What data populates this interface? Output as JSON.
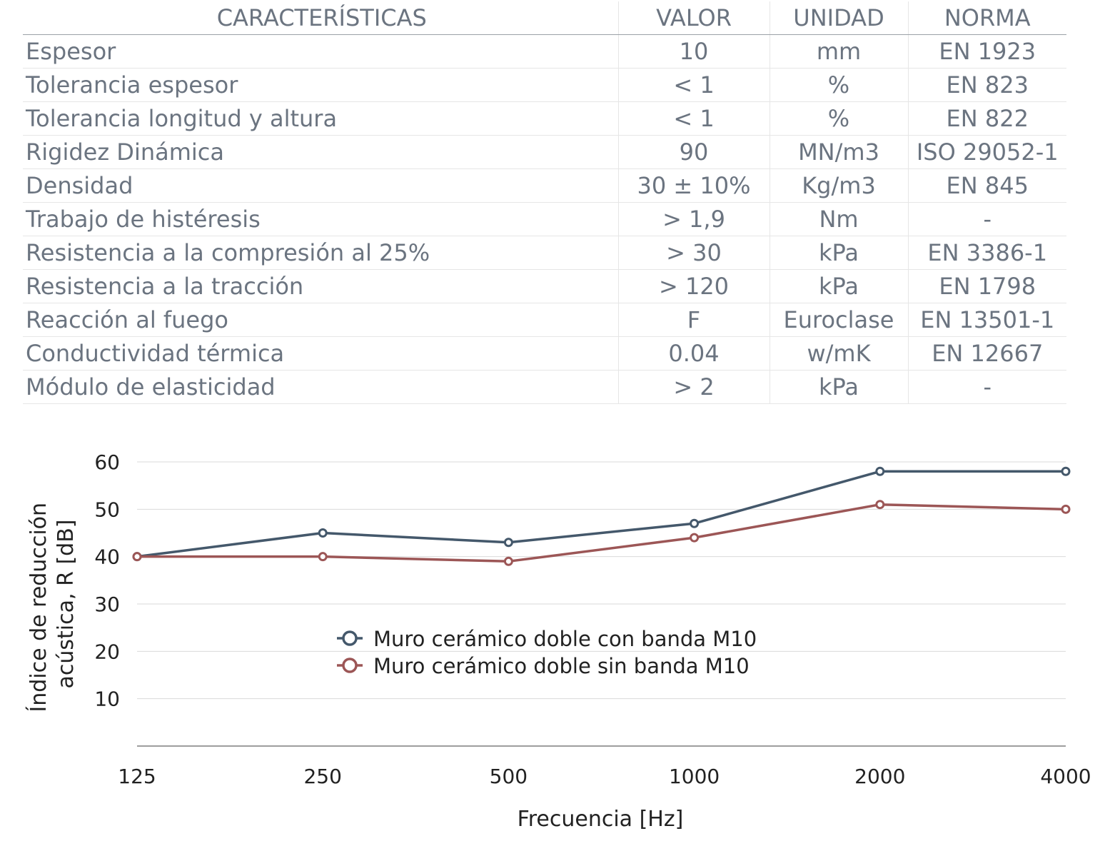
{
  "table": {
    "headers": [
      "CARACTERÍSTICAS",
      "VALOR",
      "UNIDAD",
      "NORMA"
    ],
    "rows": [
      [
        "Espesor",
        "10",
        "mm",
        "EN 1923"
      ],
      [
        "Tolerancia espesor",
        "< 1",
        "%",
        "EN 823"
      ],
      [
        "Tolerancia longitud y altura",
        "< 1",
        "%",
        "EN 822"
      ],
      [
        "Rigidez Dinámica",
        "90",
        "MN/m3",
        "ISO 29052-1"
      ],
      [
        "Densidad",
        "30 ± 10%",
        "Kg/m3",
        "EN 845"
      ],
      [
        "Trabajo de histéresis",
        "> 1,9",
        "Nm",
        "-"
      ],
      [
        "Resistencia a la compresión al 25%",
        "> 30",
        "kPa",
        "EN 3386-1"
      ],
      [
        "Resistencia a la tracción",
        "> 120",
        "kPa",
        "EN 1798"
      ],
      [
        "Reacción al fuego",
        "F",
        "Euroclase",
        "EN 13501-1"
      ],
      [
        "Conductividad térmica",
        "0.04",
        "w/mK",
        "EN 12667"
      ],
      [
        "Módulo de elasticidad",
        "> 2",
        "kPa",
        "-"
      ]
    ]
  },
  "chart_data": {
    "type": "line",
    "title": "",
    "xlabel": "Frecuencia [Hz]",
    "ylabel_lines": [
      "Índice de reducción",
      "acústica, R [dB]"
    ],
    "categories": [
      "125",
      "250",
      "500",
      "1000",
      "2000",
      "4000"
    ],
    "ylim": [
      0,
      60
    ],
    "yticks": [
      10,
      20,
      30,
      40,
      50,
      60
    ],
    "grid": true,
    "legend_position": "center",
    "series": [
      {
        "name": "Muro cerámico doble con banda M10",
        "color": "#44586b",
        "values": [
          40,
          45,
          43,
          47,
          58,
          58
        ]
      },
      {
        "name": "Muro cerámico doble sin banda M10",
        "color": "#9c5656",
        "values": [
          40,
          40,
          39,
          44,
          51,
          50
        ]
      }
    ]
  }
}
